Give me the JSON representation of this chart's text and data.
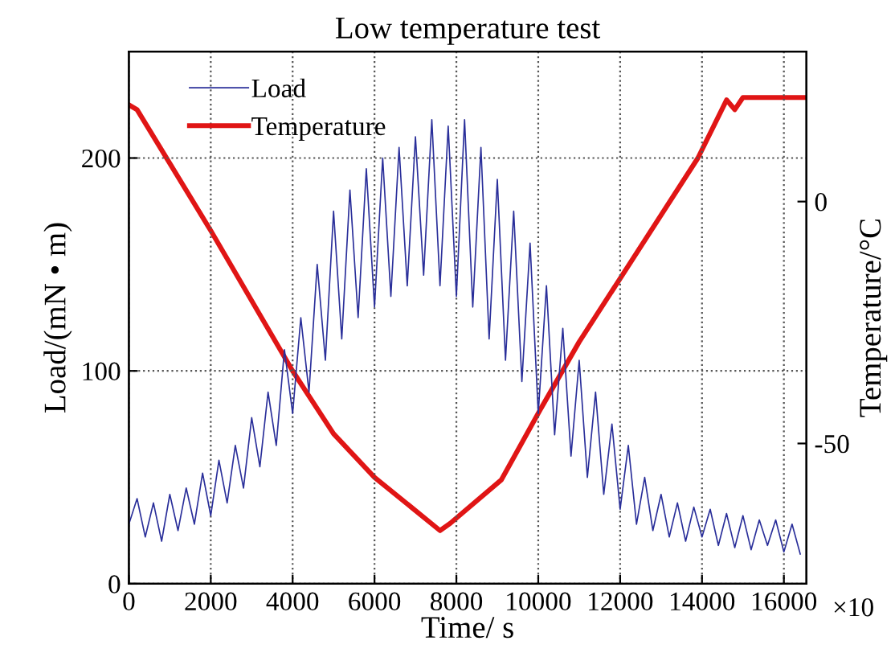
{
  "chart_data": {
    "type": "line",
    "title": "Low temperature test",
    "xlabel": "Time/ s",
    "ylabel": "Load/(mN • m)",
    "y2label": "Temperature/°C",
    "annotations": [
      "×10"
    ],
    "xlim": [
      0,
      16550
    ],
    "xticks": [
      0,
      2000,
      4000,
      6000,
      8000,
      10000,
      12000,
      14000,
      16000
    ],
    "ylim": [
      0,
      250
    ],
    "yticks": [
      0,
      100,
      200
    ],
    "y2lim": [
      -79,
      31
    ],
    "y2ticks": [
      -50,
      0
    ],
    "grid": true,
    "legend": "top left",
    "marker": "none",
    "line_style": "solid",
    "series": [
      {
        "name": "Load",
        "color": "#2a2f9a",
        "x": [
          0,
          200,
          400,
          600,
          800,
          1000,
          1200,
          1400,
          1600,
          1800,
          2000,
          2200,
          2400,
          2600,
          2800,
          3000,
          3200,
          3400,
          3600,
          3800,
          4000,
          4200,
          4400,
          4600,
          4800,
          5000,
          5200,
          5400,
          5600,
          5800,
          6000,
          6200,
          6400,
          6600,
          6800,
          7000,
          7200,
          7400,
          7600,
          7800,
          8000,
          8200,
          8400,
          8600,
          8800,
          9000,
          9200,
          9400,
          9600,
          9800,
          10000,
          10200,
          10400,
          10600,
          10800,
          11000,
          11200,
          11400,
          11600,
          11800,
          12000,
          12200,
          12400,
          12600,
          12800,
          13000,
          13200,
          13400,
          13600,
          13800,
          14000,
          14200,
          14400,
          14600,
          14800,
          15000,
          15200,
          15400,
          15600,
          15800,
          16000,
          16200,
          16400
        ],
        "values": [
          28,
          40,
          22,
          38,
          20,
          42,
          25,
          45,
          28,
          52,
          32,
          58,
          38,
          65,
          45,
          78,
          55,
          90,
          65,
          110,
          80,
          125,
          90,
          150,
          105,
          175,
          115,
          185,
          125,
          195,
          130,
          200,
          135,
          205,
          140,
          210,
          145,
          218,
          140,
          215,
          135,
          218,
          130,
          205,
          115,
          190,
          105,
          175,
          95,
          160,
          80,
          140,
          70,
          120,
          60,
          105,
          50,
          90,
          42,
          75,
          35,
          65,
          28,
          50,
          25,
          42,
          22,
          38,
          20,
          36,
          22,
          35,
          18,
          33,
          17,
          32,
          16,
          30,
          18,
          30,
          15,
          28,
          14
        ]
      },
      {
        "name": "Temperature",
        "color": "#e01515",
        "axis": "y2",
        "x": [
          0,
          200,
          2000,
          4000,
          5000,
          6000,
          7600,
          7850,
          9100,
          10050,
          11000,
          13900,
          14600,
          14800,
          15000,
          16550
        ],
        "values": [
          20,
          19,
          -6,
          -35,
          -48,
          -57,
          -68,
          -66.5,
          -57.5,
          -43,
          -29,
          9,
          21,
          19,
          21.5,
          21.5
        ]
      }
    ]
  }
}
